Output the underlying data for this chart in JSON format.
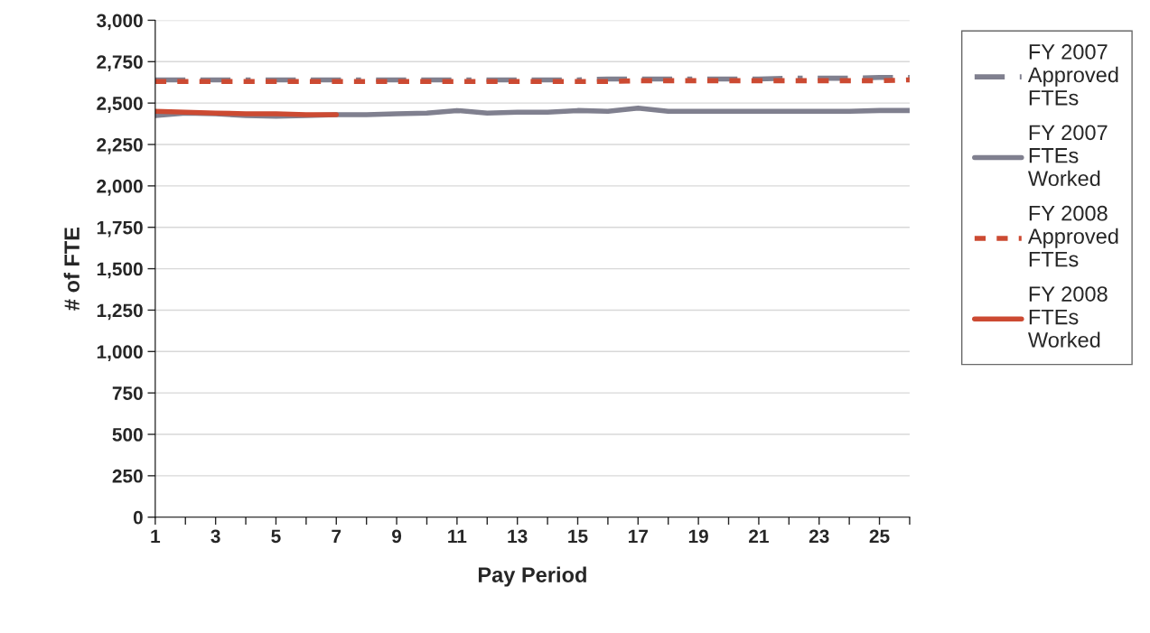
{
  "chart_data": {
    "type": "line",
    "xlabel": "Pay Period",
    "ylabel": "# of FTE",
    "x": [
      1,
      2,
      3,
      4,
      5,
      6,
      7,
      8,
      9,
      10,
      11,
      12,
      13,
      14,
      15,
      16,
      17,
      18,
      19,
      20,
      21,
      22,
      23,
      24,
      25,
      26
    ],
    "series": [
      {
        "name": "FY 2007 Approved FTEs",
        "color": "#80808f",
        "line_style": "dashed",
        "values": [
          2640,
          2640,
          2640,
          2640,
          2640,
          2640,
          2640,
          2640,
          2640,
          2640,
          2640,
          2640,
          2640,
          2640,
          2640,
          2645,
          2645,
          2645,
          2645,
          2645,
          2645,
          2650,
          2650,
          2650,
          2655,
          2655
        ]
      },
      {
        "name": "FY 2007 FTEs Worked",
        "color": "#80808f",
        "line_style": "solid",
        "values": [
          2425,
          2440,
          2435,
          2425,
          2420,
          2425,
          2430,
          2430,
          2435,
          2440,
          2455,
          2440,
          2445,
          2445,
          2455,
          2450,
          2470,
          2450,
          2450,
          2450,
          2450,
          2450,
          2450,
          2450,
          2455,
          2455
        ]
      },
      {
        "name": "FY 2008 Approved FTEs",
        "color": "#cc4a32",
        "line_style": "dotted",
        "values": [
          2630,
          2630,
          2630,
          2630,
          2630,
          2630,
          2630,
          2630,
          2630,
          2630,
          2630,
          2630,
          2630,
          2630,
          2630,
          2630,
          2635,
          2635,
          2635,
          2635,
          2635,
          2635,
          2635,
          2635,
          2635,
          2640
        ]
      },
      {
        "name": "FY 2008 FTEs Worked",
        "color": "#cc4a32",
        "line_style": "solid",
        "x": [
          1,
          2,
          3,
          4,
          5,
          6,
          7
        ],
        "values": [
          2450,
          2445,
          2440,
          2435,
          2435,
          2430,
          2430
        ]
      }
    ],
    "xlim": [
      1,
      26
    ],
    "xticks": [
      1,
      {
        "value": 2,
        "label": null
      },
      3,
      {
        "value": 4,
        "label": null
      },
      5,
      {
        "value": 6,
        "label": null
      },
      7,
      {
        "value": 8,
        "label": null
      },
      9,
      {
        "value": 10,
        "label": null
      },
      11,
      {
        "value": 12,
        "label": null
      },
      13,
      {
        "value": 14,
        "label": null
      },
      15,
      {
        "value": 16,
        "label": null
      },
      17,
      {
        "value": 18,
        "label": null
      },
      19,
      {
        "value": 20,
        "label": null
      },
      21,
      {
        "value": 22,
        "label": null
      },
      23,
      {
        "value": 24,
        "label": null
      },
      25,
      {
        "value": 26,
        "label": null
      }
    ],
    "ylim": [
      0,
      3000
    ],
    "yticks": [
      {
        "value": 0,
        "label": "0"
      },
      {
        "value": 250,
        "label": "250"
      },
      {
        "value": 500,
        "label": "500"
      },
      {
        "value": 750,
        "label": "750"
      },
      {
        "value": 1000,
        "label": "1,000"
      },
      {
        "value": 1250,
        "label": "1,250"
      },
      {
        "value": 1500,
        "label": "1,500"
      },
      {
        "value": 1750,
        "label": "1,750"
      },
      {
        "value": 2000,
        "label": "2,000"
      },
      {
        "value": 2250,
        "label": "2,250"
      },
      {
        "value": 2500,
        "label": "2,500"
      },
      {
        "value": 2750,
        "label": "2,750"
      },
      {
        "value": 3000,
        "label": "3,000"
      }
    ],
    "grid": "y",
    "legend": "right",
    "marker": "none"
  }
}
